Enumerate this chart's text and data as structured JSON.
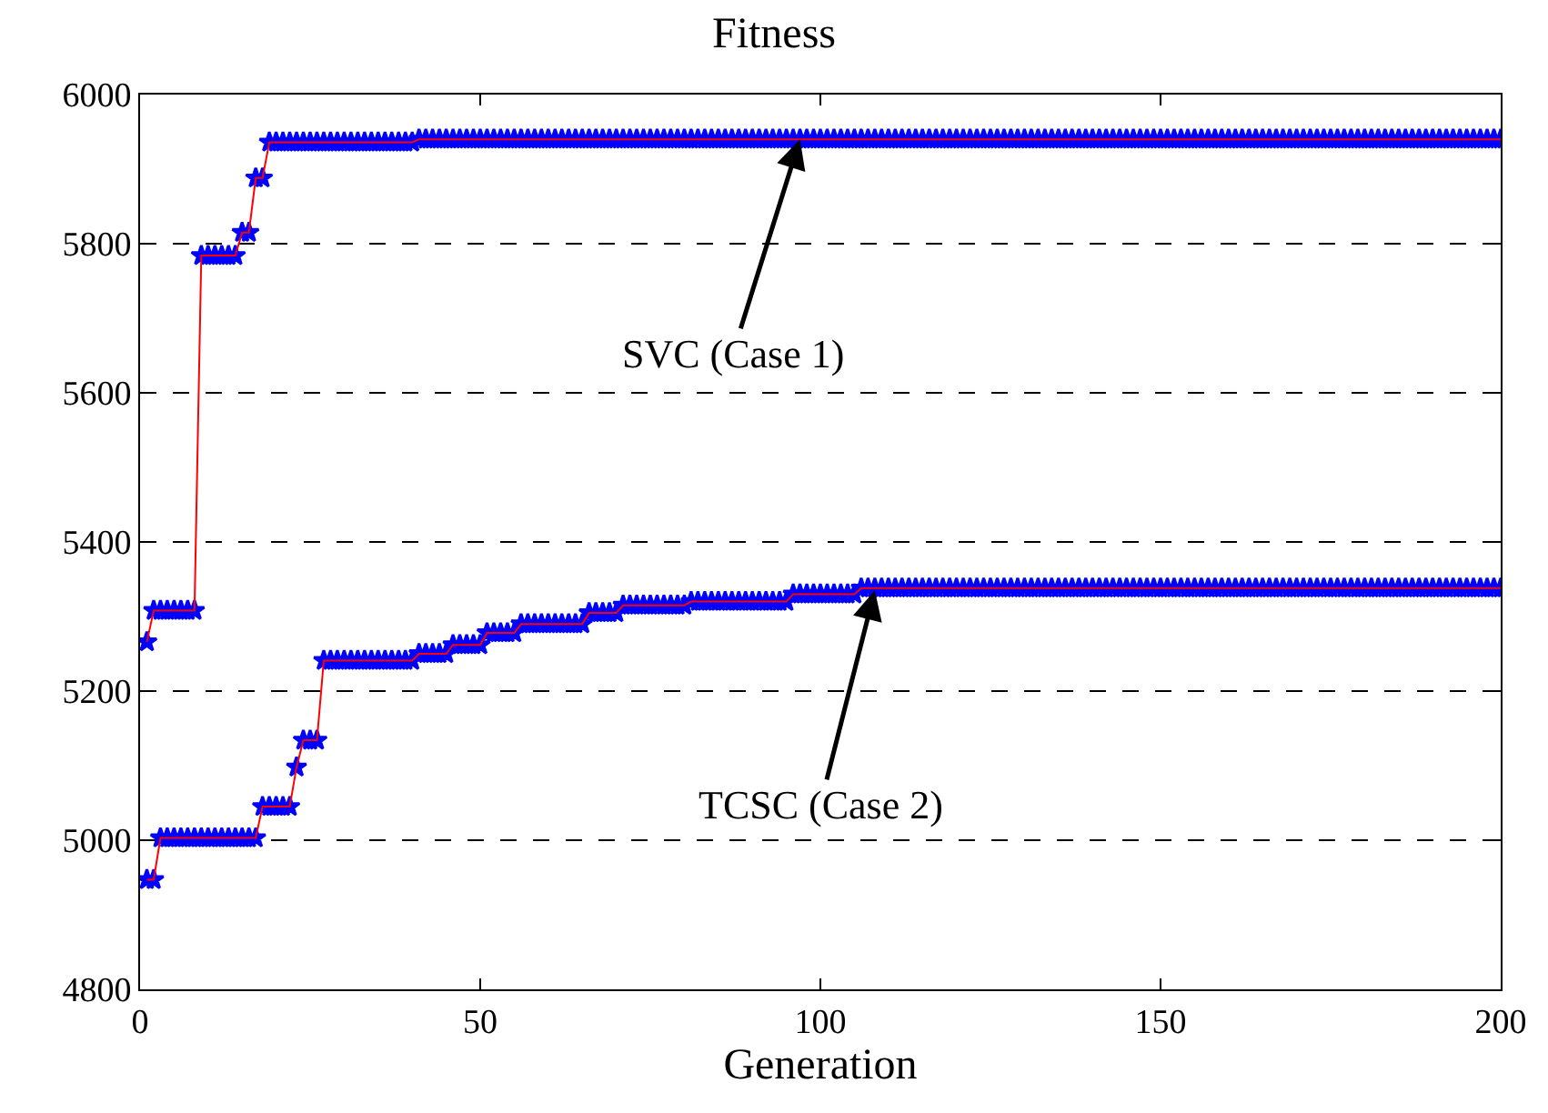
{
  "chart_data": {
    "type": "line",
    "title": "Fitness",
    "xlabel": "Generation",
    "xlim": [
      0,
      200
    ],
    "xticks": [
      0,
      50,
      100,
      150,
      200
    ],
    "ylim": [
      4800,
      6000
    ],
    "yticks": [
      4800,
      5000,
      5200,
      5400,
      5600,
      5800,
      6000
    ],
    "grid": "y",
    "x": [
      1,
      2,
      3,
      4,
      5,
      6,
      7,
      8,
      9,
      10,
      11,
      12,
      13,
      14,
      15,
      16,
      17,
      18,
      19,
      20,
      21,
      22,
      23,
      24,
      25,
      26,
      27,
      28,
      29,
      30,
      31,
      32,
      33,
      34,
      35,
      36,
      37,
      38,
      39,
      40,
      41,
      42,
      43,
      44,
      45,
      46,
      47,
      48,
      49,
      50,
      51,
      52,
      53,
      54,
      55,
      56,
      57,
      58,
      59,
      60,
      61,
      62,
      63,
      64,
      65,
      66,
      67,
      68,
      69,
      70,
      71,
      72,
      73,
      74,
      75,
      76,
      77,
      78,
      79,
      80,
      81,
      82,
      83,
      84,
      85,
      86,
      87,
      88,
      89,
      90,
      91,
      92,
      93,
      94,
      95,
      96,
      97,
      98,
      99,
      100,
      101,
      102,
      103,
      104,
      105,
      106,
      107,
      108,
      109,
      110,
      111,
      112,
      113,
      114,
      115,
      116,
      117,
      118,
      119,
      120,
      121,
      122,
      123,
      124,
      125,
      126,
      127,
      128,
      129,
      130,
      131,
      132,
      133,
      134,
      135,
      136,
      137,
      138,
      139,
      140,
      141,
      142,
      143,
      144,
      145,
      146,
      147,
      148,
      149,
      150,
      151,
      152,
      153,
      154,
      155,
      156,
      157,
      158,
      159,
      160,
      161,
      162,
      163,
      164,
      165,
      166,
      167,
      168,
      169,
      170,
      171,
      172,
      173,
      174,
      175,
      176,
      177,
      178,
      179,
      180,
      181,
      182,
      183,
      184,
      185,
      186,
      187,
      188,
      189,
      190,
      191,
      192,
      193,
      194,
      195,
      196,
      197,
      198,
      199,
      200
    ],
    "series": [
      {
        "type": "scatter",
        "color": "#0000ff",
        "marker": "star",
        "values": [
          5266,
          5308,
          5308,
          5308,
          5308,
          5308,
          5308,
          5308,
          5784,
          5784,
          5784,
          5784,
          5784,
          5784,
          5815,
          5815,
          5888,
          5888,
          5936,
          5936,
          5936,
          5936,
          5936,
          5936,
          5936,
          5936,
          5936,
          5936,
          5936,
          5936,
          5936,
          5936,
          5936,
          5936,
          5936,
          5936,
          5936,
          5936,
          5936,
          5936,
          5940,
          5940,
          5940,
          5940,
          5940,
          5940,
          5940,
          5940,
          5940,
          5940,
          5940,
          5940,
          5940,
          5940,
          5940,
          5940,
          5940,
          5940,
          5940,
          5940,
          5940,
          5940,
          5940,
          5940,
          5940,
          5940,
          5940,
          5940,
          5940,
          5940,
          5940,
          5940,
          5940,
          5940,
          5940,
          5940,
          5940,
          5940,
          5940,
          5940,
          5940,
          5940,
          5940,
          5940,
          5940,
          5940,
          5940,
          5940,
          5940,
          5940,
          5940,
          5940,
          5940,
          5940,
          5940,
          5940,
          5940,
          5940,
          5940,
          5940,
          5940,
          5940,
          5940,
          5940,
          5940,
          5940,
          5940,
          5940,
          5940,
          5940,
          5940,
          5940,
          5940,
          5940,
          5940,
          5940,
          5940,
          5940,
          5940,
          5940,
          5940,
          5940,
          5940,
          5940,
          5940,
          5940,
          5940,
          5940,
          5940,
          5940,
          5940,
          5940,
          5940,
          5940,
          5940,
          5940,
          5940,
          5940,
          5940,
          5940,
          5940,
          5940,
          5940,
          5940,
          5940,
          5940,
          5940,
          5940,
          5940,
          5940,
          5940,
          5940,
          5940,
          5940,
          5940,
          5940,
          5940,
          5940,
          5940,
          5940,
          5940,
          5940,
          5940,
          5940,
          5940,
          5940,
          5940,
          5940,
          5940,
          5940,
          5940,
          5940,
          5940,
          5940,
          5940,
          5940,
          5940,
          5940,
          5940,
          5940,
          5940,
          5940,
          5940,
          5940,
          5940,
          5940,
          5940,
          5940,
          5940,
          5940,
          5940,
          5940,
          5940,
          5940,
          5940,
          5940,
          5940,
          5940,
          5940,
          5940
        ]
      },
      {
        "type": "scatter",
        "color": "#0000ff",
        "marker": "star",
        "values": [
          4947,
          4947,
          5003,
          5003,
          5003,
          5003,
          5003,
          5003,
          5003,
          5003,
          5003,
          5003,
          5003,
          5003,
          5003,
          5003,
          5003,
          5045,
          5045,
          5045,
          5045,
          5045,
          5098,
          5134,
          5134,
          5134,
          5241,
          5241,
          5241,
          5241,
          5241,
          5241,
          5241,
          5241,
          5241,
          5241,
          5241,
          5241,
          5241,
          5241,
          5250,
          5250,
          5250,
          5250,
          5250,
          5262,
          5262,
          5262,
          5262,
          5262,
          5278,
          5278,
          5278,
          5278,
          5278,
          5290,
          5290,
          5290,
          5290,
          5290,
          5290,
          5290,
          5290,
          5290,
          5290,
          5305,
          5305,
          5305,
          5305,
          5305,
          5315,
          5315,
          5315,
          5315,
          5315,
          5315,
          5315,
          5315,
          5315,
          5315,
          5320,
          5320,
          5320,
          5320,
          5320,
          5320,
          5320,
          5320,
          5320,
          5320,
          5320,
          5320,
          5320,
          5320,
          5320,
          5330,
          5330,
          5330,
          5330,
          5330,
          5330,
          5330,
          5330,
          5330,
          5330,
          5338,
          5338,
          5338,
          5338,
          5338,
          5338,
          5338,
          5338,
          5338,
          5338,
          5338,
          5338,
          5338,
          5338,
          5338,
          5338,
          5338,
          5338,
          5338,
          5338,
          5338,
          5338,
          5338,
          5338,
          5338,
          5338,
          5338,
          5338,
          5338,
          5338,
          5338,
          5338,
          5338,
          5338,
          5338,
          5338,
          5338,
          5338,
          5338,
          5338,
          5338,
          5338,
          5338,
          5338,
          5338,
          5338,
          5338,
          5338,
          5338,
          5338,
          5338,
          5338,
          5338,
          5338,
          5338,
          5338,
          5338,
          5338,
          5338,
          5338,
          5338,
          5338,
          5338,
          5338,
          5338,
          5338,
          5338,
          5338,
          5338,
          5338,
          5338,
          5338,
          5338,
          5338,
          5338,
          5338,
          5338,
          5338,
          5338,
          5338,
          5338,
          5338,
          5338,
          5338,
          5338,
          5338,
          5338,
          5338,
          5338,
          5338,
          5338,
          5338,
          5338,
          5338,
          5338
        ]
      },
      {
        "color": "#ff0000",
        "marker": "none",
        "line_style": "solid",
        "values": [
          5266,
          5308,
          5308,
          5308,
          5308,
          5308,
          5308,
          5308,
          5784,
          5784,
          5784,
          5784,
          5784,
          5784,
          5815,
          5815,
          5888,
          5888,
          5936,
          5936,
          5936,
          5936,
          5936,
          5936,
          5936,
          5936,
          5936,
          5936,
          5936,
          5936,
          5936,
          5936,
          5936,
          5936,
          5936,
          5936,
          5936,
          5936,
          5936,
          5936,
          5940,
          5940,
          5940,
          5940,
          5940,
          5940,
          5940,
          5940,
          5940,
          5940,
          5940,
          5940,
          5940,
          5940,
          5940,
          5940,
          5940,
          5940,
          5940,
          5940,
          5940,
          5940,
          5940,
          5940,
          5940,
          5940,
          5940,
          5940,
          5940,
          5940,
          5940,
          5940,
          5940,
          5940,
          5940,
          5940,
          5940,
          5940,
          5940,
          5940,
          5940,
          5940,
          5940,
          5940,
          5940,
          5940,
          5940,
          5940,
          5940,
          5940,
          5940,
          5940,
          5940,
          5940,
          5940,
          5940,
          5940,
          5940,
          5940,
          5940,
          5940,
          5940,
          5940,
          5940,
          5940,
          5940,
          5940,
          5940,
          5940,
          5940,
          5940,
          5940,
          5940,
          5940,
          5940,
          5940,
          5940,
          5940,
          5940,
          5940,
          5940,
          5940,
          5940,
          5940,
          5940,
          5940,
          5940,
          5940,
          5940,
          5940,
          5940,
          5940,
          5940,
          5940,
          5940,
          5940,
          5940,
          5940,
          5940,
          5940,
          5940,
          5940,
          5940,
          5940,
          5940,
          5940,
          5940,
          5940,
          5940,
          5940,
          5940,
          5940,
          5940,
          5940,
          5940,
          5940,
          5940,
          5940,
          5940,
          5940,
          5940,
          5940,
          5940,
          5940,
          5940,
          5940,
          5940,
          5940,
          5940,
          5940,
          5940,
          5940,
          5940,
          5940,
          5940,
          5940,
          5940,
          5940,
          5940,
          5940,
          5940,
          5940,
          5940,
          5940,
          5940,
          5940,
          5940,
          5940,
          5940,
          5940,
          5940,
          5940,
          5940,
          5940,
          5940,
          5940,
          5940,
          5940,
          5940,
          5940
        ]
      },
      {
        "color": "#ff0000",
        "marker": "none",
        "line_style": "solid",
        "values": [
          4947,
          4947,
          5003,
          5003,
          5003,
          5003,
          5003,
          5003,
          5003,
          5003,
          5003,
          5003,
          5003,
          5003,
          5003,
          5003,
          5003,
          5045,
          5045,
          5045,
          5045,
          5045,
          5098,
          5134,
          5134,
          5134,
          5241,
          5241,
          5241,
          5241,
          5241,
          5241,
          5241,
          5241,
          5241,
          5241,
          5241,
          5241,
          5241,
          5241,
          5250,
          5250,
          5250,
          5250,
          5250,
          5262,
          5262,
          5262,
          5262,
          5262,
          5278,
          5278,
          5278,
          5278,
          5278,
          5290,
          5290,
          5290,
          5290,
          5290,
          5290,
          5290,
          5290,
          5290,
          5290,
          5305,
          5305,
          5305,
          5305,
          5305,
          5315,
          5315,
          5315,
          5315,
          5315,
          5315,
          5315,
          5315,
          5315,
          5315,
          5320,
          5320,
          5320,
          5320,
          5320,
          5320,
          5320,
          5320,
          5320,
          5320,
          5320,
          5320,
          5320,
          5320,
          5320,
          5330,
          5330,
          5330,
          5330,
          5330,
          5330,
          5330,
          5330,
          5330,
          5330,
          5338,
          5338,
          5338,
          5338,
          5338,
          5338,
          5338,
          5338,
          5338,
          5338,
          5338,
          5338,
          5338,
          5338,
          5338,
          5338,
          5338,
          5338,
          5338,
          5338,
          5338,
          5338,
          5338,
          5338,
          5338,
          5338,
          5338,
          5338,
          5338,
          5338,
          5338,
          5338,
          5338,
          5338,
          5338,
          5338,
          5338,
          5338,
          5338,
          5338,
          5338,
          5338,
          5338,
          5338,
          5338,
          5338,
          5338,
          5338,
          5338,
          5338,
          5338,
          5338,
          5338,
          5338,
          5338,
          5338,
          5338,
          5338,
          5338,
          5338,
          5338,
          5338,
          5338,
          5338,
          5338,
          5338,
          5338,
          5338,
          5338,
          5338,
          5338,
          5338,
          5338,
          5338,
          5338,
          5338,
          5338,
          5338,
          5338,
          5338,
          5338,
          5338,
          5338,
          5338,
          5338,
          5338,
          5338,
          5338,
          5338,
          5338,
          5338,
          5338,
          5338,
          5338,
          5338
        ]
      }
    ],
    "annotations": [
      {
        "text": "SVC (Case 1)",
        "x": 97,
        "y": 5940
      },
      {
        "text": "TCSC (Case 2)",
        "x": 108,
        "y": 5335
      }
    ]
  }
}
